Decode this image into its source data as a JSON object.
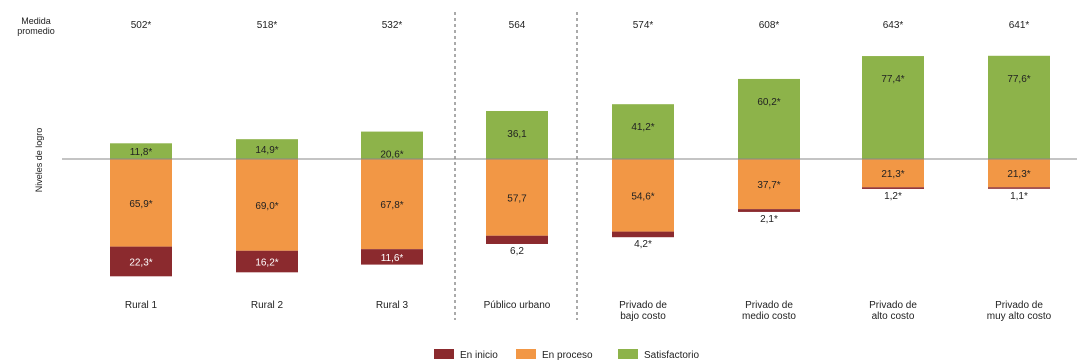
{
  "chart_data": {
    "type": "bar",
    "stacked": "diverging",
    "ylabel": "Niveles de logro",
    "avg_label_lines": [
      "Medida",
      "promedio"
    ],
    "categories": [
      {
        "label": [
          "Rural 1"
        ],
        "average": "502*",
        "values": [
          22.3,
          65.9,
          11.8
        ],
        "labels": [
          "22,3*",
          "65,9*",
          "11,8*"
        ]
      },
      {
        "label": [
          "Rural 2"
        ],
        "average": "518*",
        "values": [
          16.2,
          69.0,
          14.9
        ],
        "labels": [
          "16,2*",
          "69,0*",
          "14,9*"
        ]
      },
      {
        "label": [
          "Rural 3"
        ],
        "average": "532*",
        "values": [
          11.6,
          67.8,
          20.6
        ],
        "labels": [
          "11,6*",
          "67,8*",
          "20,6*"
        ]
      },
      {
        "label": [
          "Público urbano"
        ],
        "average": "564",
        "values": [
          6.2,
          57.7,
          36.1
        ],
        "labels": [
          "6,2",
          "57,7",
          "36,1"
        ]
      },
      {
        "label": [
          "Privado de",
          "bajo costo"
        ],
        "average": "574*",
        "values": [
          4.2,
          54.6,
          41.2
        ],
        "labels": [
          "4,2*",
          "54,6*",
          "41,2*"
        ]
      },
      {
        "label": [
          "Privado de",
          "medio costo"
        ],
        "average": "608*",
        "values": [
          2.1,
          37.7,
          60.2
        ],
        "labels": [
          "2,1*",
          "37,7*",
          "60,2*"
        ]
      },
      {
        "label": [
          "Privado de",
          "alto costo"
        ],
        "average": "643*",
        "values": [
          1.2,
          21.3,
          77.4
        ],
        "labels": [
          "1,2*",
          "21,3*",
          "77,4*"
        ]
      },
      {
        "label": [
          "Privado de",
          "muy alto costo"
        ],
        "average": "641*",
        "values": [
          1.1,
          21.3,
          77.6
        ],
        "labels": [
          "1,1*",
          "21,3*",
          "77,6*"
        ]
      }
    ],
    "series": [
      {
        "name": "En inicio",
        "color": "#8b2a2e"
      },
      {
        "name": "En proceso",
        "color": "#f29745"
      },
      {
        "name": "Satisfactorio",
        "color": "#8db34a"
      }
    ],
    "baseline": "between En inicio+En proceso (below) and Satisfactorio (above)",
    "group_dividers_after": [
      3,
      4
    ],
    "legend_position": "bottom-center"
  }
}
